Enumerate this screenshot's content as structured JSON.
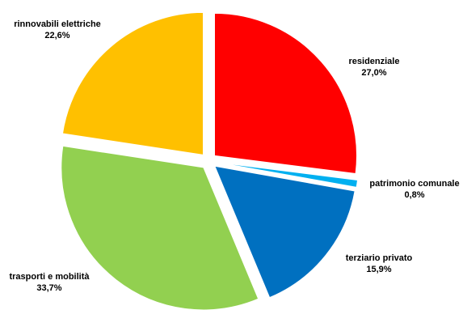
{
  "chart_data": {
    "type": "pie",
    "title": "",
    "legend": "none",
    "start_angle_deg": 0,
    "direction": "clockwise",
    "exploded": true,
    "slices": [
      {
        "label": "residenziale",
        "value": 27.0,
        "value_label": "27,0%",
        "color": "#FF0000"
      },
      {
        "label": "patrimonio comunale",
        "value": 0.8,
        "value_label": "0,8%",
        "color": "#00B0F0"
      },
      {
        "label": "terziario privato",
        "value": 15.9,
        "value_label": "15,9%",
        "color": "#0070C0"
      },
      {
        "label": "trasporti e mobilità",
        "value": 33.7,
        "value_label": "33,7%",
        "color": "#92D050"
      },
      {
        "label": "rinnovabili elettriche",
        "value": 22.6,
        "value_label": "22,6%",
        "color": "#FFC000"
      }
    ]
  }
}
